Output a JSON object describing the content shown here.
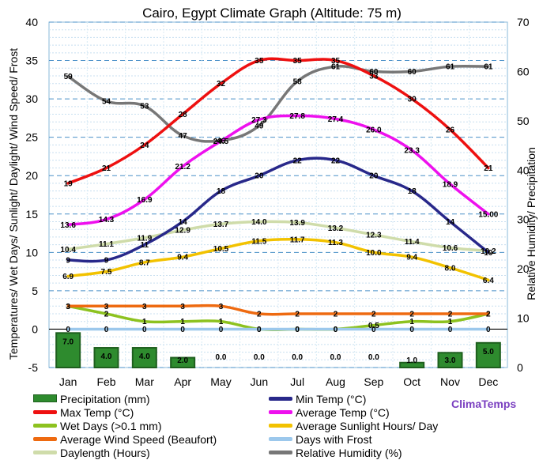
{
  "brand": "ClimaTemps",
  "chart_data": {
    "type": "line",
    "title": "Cairo, Egypt Climate Graph (Altitude: 75 m)",
    "ylabel_left": "Temperatures/ Wet Days/ Sunlight/ Daylight/ Wind Speed/ Frost",
    "ylabel_right": "Relative Humidity/ Precipitation",
    "ylim_left": [
      -5,
      40
    ],
    "ylim_right": [
      0,
      70
    ],
    "left_ticks": [
      "-5",
      "0",
      "5",
      "10",
      "15",
      "20",
      "25",
      "30",
      "35",
      "40"
    ],
    "right_ticks": [
      "0",
      "10",
      "20",
      "30",
      "40",
      "50",
      "60",
      "70"
    ],
    "categories": [
      "Jan",
      "Feb",
      "Mar",
      "Apr",
      "May",
      "Jun",
      "Jul",
      "Aug",
      "Sep",
      "Oct",
      "Nov",
      "Dec"
    ],
    "bars": {
      "name": "Precipitation (mm)",
      "color": "#2e8b2e",
      "values": [
        7.0,
        4.0,
        4.0,
        2.0,
        0.0,
        0.0,
        0.0,
        0.0,
        0.0,
        1.0,
        3.0,
        5.0
      ],
      "labels": [
        "7.0",
        "4.0",
        "4.0",
        "2.0",
        "0.0",
        "0.0",
        "0.0",
        "0.0",
        "0.0",
        "1.0",
        "3.0",
        "5.0"
      ]
    },
    "series": [
      {
        "name": "Daylength (Hours)",
        "color": "#cfdcaa",
        "axis": "left",
        "values": [
          10.4,
          11.1,
          11.9,
          12.9,
          13.7,
          14.0,
          13.9,
          13.2,
          12.3,
          11.4,
          10.6,
          10.2
        ],
        "labels": [
          "10.4",
          "11.1",
          "11.9",
          "12.9",
          "13.7",
          "14.0",
          "13.9",
          "13.2",
          "12.3",
          "11.4",
          "10.6",
          "10.2"
        ]
      },
      {
        "name": "Relative Humidity (%)",
        "color": "#777777",
        "axis": "right",
        "values": [
          59,
          54,
          53,
          47,
          46,
          49,
          58,
          61,
          60,
          60,
          61,
          61
        ],
        "labels": [
          "59",
          "54",
          "53",
          "47",
          "46",
          "49",
          "58",
          "61",
          "60",
          "60",
          "61",
          "61"
        ]
      },
      {
        "name": "Average Sunlight Hours/ Day",
        "color": "#f2c200",
        "axis": "left",
        "values": [
          6.9,
          7.5,
          8.7,
          9.4,
          10.5,
          11.5,
          11.7,
          11.3,
          10.0,
          9.4,
          8.0,
          6.4
        ],
        "labels": [
          "6.9",
          "7.5",
          "8.7",
          "9.4",
          "10.5",
          "11.5",
          "11.7",
          "11.3",
          "10.0",
          "9.4",
          "8.0",
          "6.4"
        ]
      },
      {
        "name": "Wet Days (>0.1 mm)",
        "color": "#8dc21f",
        "axis": "left",
        "values": [
          3,
          2,
          1,
          1,
          1,
          0,
          0,
          0,
          0.5,
          1,
          1,
          2
        ],
        "labels": [
          "3",
          "2",
          "1",
          "1",
          "1",
          "0",
          "0",
          "0",
          "0.5",
          "1",
          "1",
          "2"
        ]
      },
      {
        "name": "Days with Frost",
        "color": "#9cc8ec",
        "axis": "left",
        "values": [
          0,
          0,
          0,
          0,
          0,
          0,
          0,
          0,
          0,
          0,
          0,
          0
        ],
        "labels": [
          "0",
          "0",
          "0",
          "0",
          "0",
          "0",
          "0",
          "0",
          "0",
          "0",
          "0",
          "0"
        ]
      },
      {
        "name": "Average Wind Speed (Beaufort)",
        "color": "#ee6a10",
        "axis": "left",
        "values": [
          3,
          3,
          3,
          3,
          3,
          2,
          2,
          2,
          2,
          2,
          2,
          2
        ],
        "labels": [
          "3",
          "3",
          "3",
          "3",
          "3",
          "2",
          "2",
          "2",
          "2",
          "2",
          "2",
          "2"
        ]
      },
      {
        "name": "Min Temp (°C)",
        "color": "#28288a",
        "axis": "left",
        "values": [
          9,
          9,
          11,
          14,
          18,
          20,
          22,
          22,
          20,
          18,
          14,
          10
        ],
        "labels": [
          "9",
          "9",
          "11",
          "14",
          "18",
          "20",
          "22",
          "22",
          "20",
          "18",
          "14",
          "10"
        ]
      },
      {
        "name": "Average Temp (°C)",
        "color": "#ee10ee",
        "axis": "left",
        "values": [
          13.6,
          14.3,
          16.9,
          21.2,
          24.5,
          27.3,
          27.8,
          27.4,
          26.0,
          23.3,
          18.9,
          15.0
        ],
        "labels": [
          "13.6",
          "14.3",
          "16.9",
          "21.2",
          "24.5",
          "27.3",
          "27.8",
          "27.4",
          "26.0",
          "23.3",
          "18.9",
          "15.00"
        ]
      },
      {
        "name": "Max Temp (°C)",
        "color": "#ee1010",
        "axis": "left",
        "values": [
          19,
          21,
          24,
          28,
          32,
          35,
          35,
          35,
          33,
          30,
          26,
          21
        ],
        "labels": [
          "19",
          "21",
          "24",
          "28",
          "32",
          "35",
          "35",
          "35",
          "33",
          "30",
          "26",
          "21"
        ]
      }
    ],
    "legend_order": [
      "Precipitation (mm)",
      "Min Temp (°C)",
      "Max Temp (°C)",
      "Average Temp (°C)",
      "Wet Days (>0.1 mm)",
      "Average Sunlight Hours/ Day",
      "Average Wind Speed (Beaufort)",
      "Days with Frost",
      "Daylength (Hours)",
      "Relative Humidity (%)"
    ],
    "legend_placement": "bottom"
  }
}
